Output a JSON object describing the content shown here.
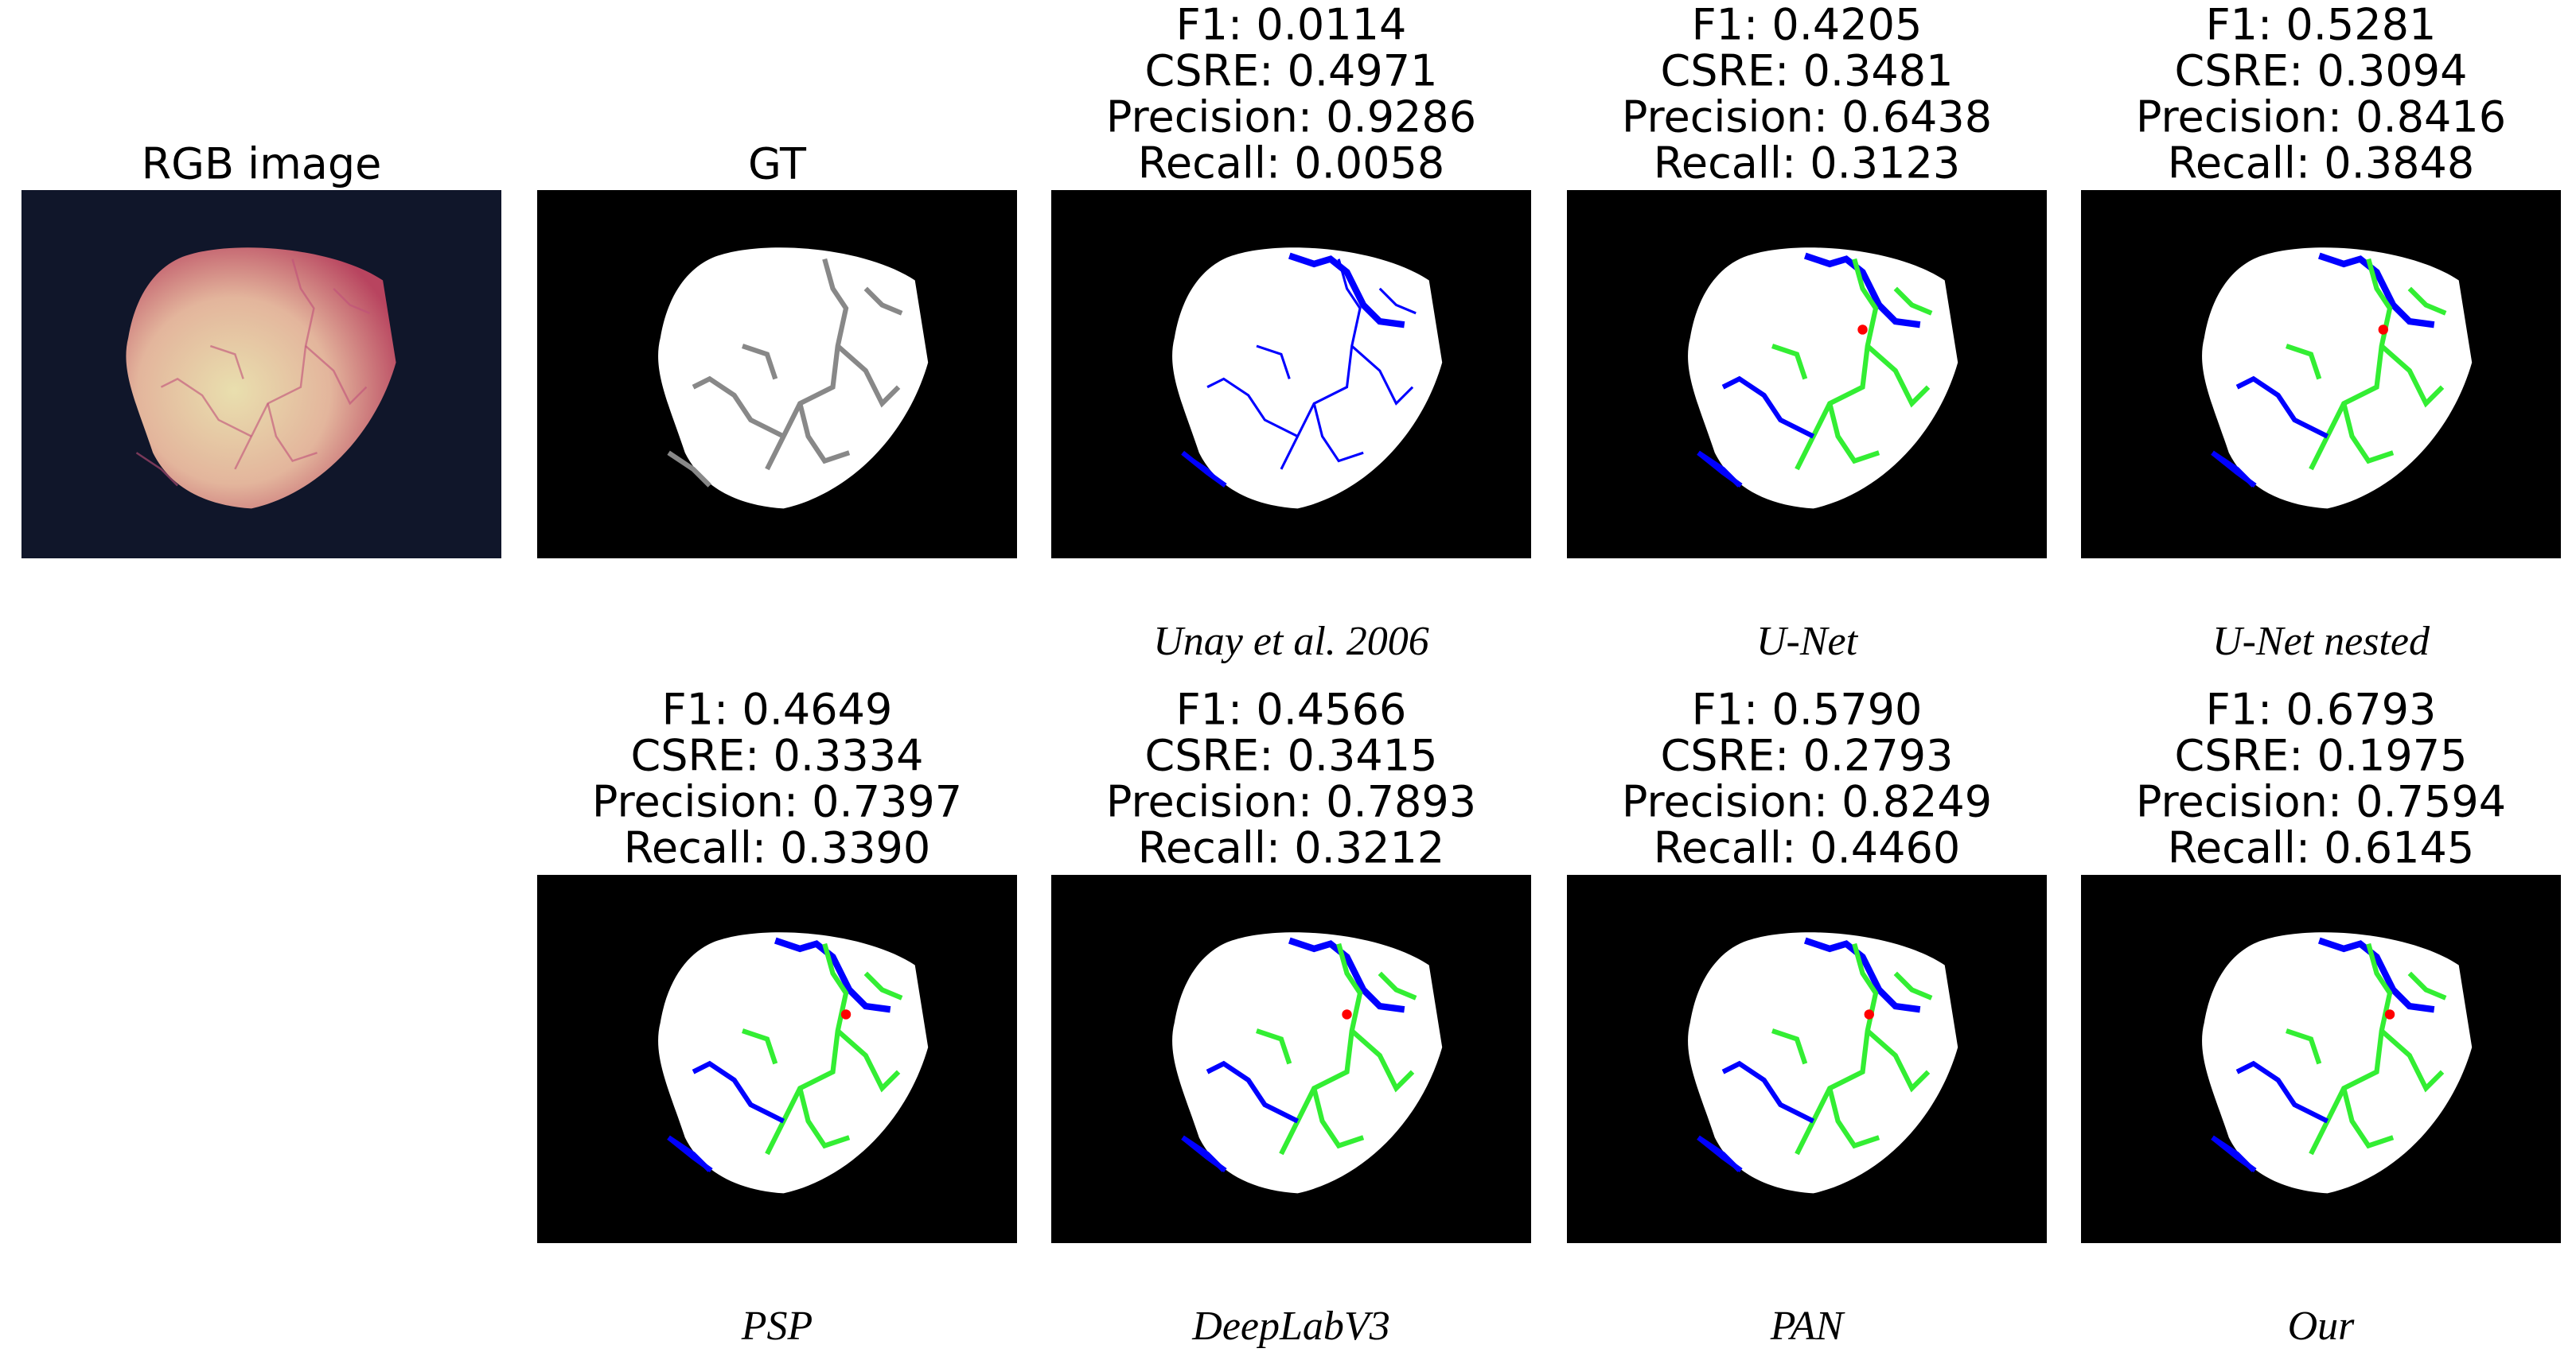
{
  "panels": [
    {
      "title": "RGB image"
    },
    {
      "title": "GT"
    },
    {
      "metrics": [
        "F1: 0.0114",
        "CSRE: 0.4971",
        "Precision: 0.9286",
        "Recall: 0.0058"
      ],
      "caption": "Unay et al. 2006"
    },
    {
      "metrics": [
        "F1: 0.4205",
        "CSRE: 0.3481",
        "Precision: 0.6438",
        "Recall: 0.3123"
      ],
      "caption": "U-Net"
    },
    {
      "metrics": [
        "F1: 0.5281",
        "CSRE: 0.3094",
        "Precision: 0.8416",
        "Recall: 0.3848"
      ],
      "caption": "U-Net nested"
    },
    {
      "metrics": [
        "F1: 0.4649",
        "CSRE: 0.3334",
        "Precision: 0.7397",
        "Recall: 0.3390"
      ],
      "caption": "PSP"
    },
    {
      "metrics": [
        "F1: 0.4566",
        "CSRE: 0.3415",
        "Precision: 0.7893",
        "Recall: 0.3212"
      ],
      "caption": "DeepLabV3"
    },
    {
      "metrics": [
        "F1: 0.5790",
        "CSRE: 0.2793",
        "Precision: 0.8249",
        "Recall: 0.4460"
      ],
      "caption": "PAN"
    },
    {
      "metrics": [
        "F1: 0.6793",
        "CSRE: 0.1975",
        "Precision: 0.7594",
        "Recall: 0.6145"
      ],
      "caption": "Our"
    }
  ]
}
